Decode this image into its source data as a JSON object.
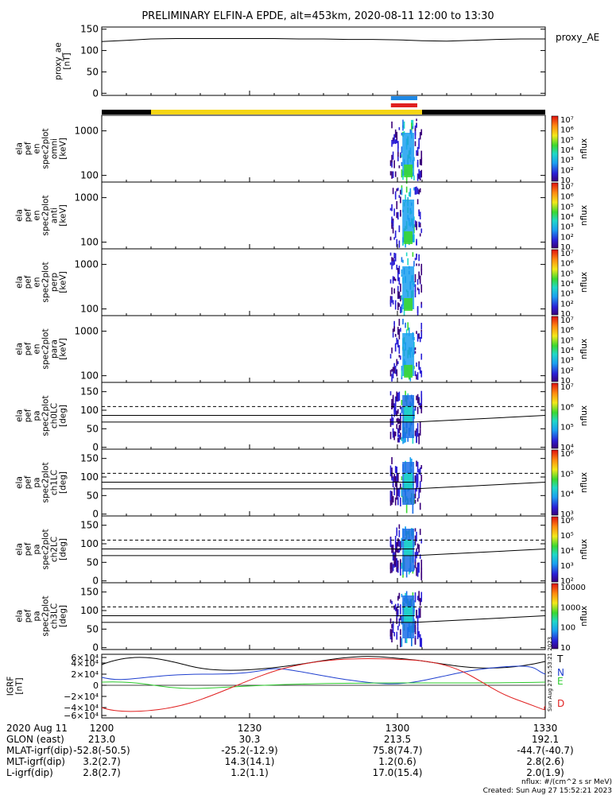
{
  "chart_data": {
    "type": "heatmap",
    "title": "PRELIMINARY ELFIN-A EPDE, alt=453km, 2020-08-11 12:00 to 13:30",
    "panels": [
      {
        "id": "proxy_ae",
        "ylabel_lines": [
          "proxy_ae",
          "[nT]"
        ],
        "ylim": [
          -5,
          155
        ],
        "yticks": [
          {
            "v": 0,
            "t": "0"
          },
          {
            "v": 50,
            "t": "50"
          },
          {
            "v": 100,
            "t": "100"
          },
          {
            "v": 150,
            "t": "150"
          }
        ],
        "legend_right": "proxy_AE",
        "line_times": [
          0,
          5,
          10,
          15,
          20,
          25,
          30,
          35,
          40,
          45,
          50,
          55,
          60,
          65,
          70,
          75,
          80,
          85,
          90
        ],
        "line_values": [
          121,
          124,
          127,
          128,
          128,
          128,
          128,
          128,
          127,
          127,
          126,
          126,
          125,
          123,
          122,
          124,
          126,
          127,
          127
        ]
      },
      {
        "id": "en_omni",
        "type": "energy",
        "ylabel_lines": [
          "ela",
          "pef",
          "en",
          "spec2plot",
          "omni",
          "[keV]"
        ],
        "yticks": [
          {
            "v": 1000,
            "t": "1000"
          },
          {
            "v": 100,
            "t": "100"
          }
        ],
        "colorbar": {
          "unit": "nflux",
          "ticks": [
            "10",
            "10²",
            "10³",
            "10⁴",
            "10⁵",
            "10⁶",
            "10⁷"
          ]
        }
      },
      {
        "id": "en_anti",
        "type": "energy",
        "ylabel_lines": [
          "ela",
          "pef",
          "en",
          "spec2plot",
          "anti",
          "[keV]"
        ],
        "yticks": [
          {
            "v": 1000,
            "t": "1000"
          },
          {
            "v": 100,
            "t": "100"
          }
        ],
        "colorbar": {
          "unit": "nflux",
          "ticks": [
            "10",
            "10²",
            "10³",
            "10⁴",
            "10⁵",
            "10⁶",
            "10⁷"
          ]
        }
      },
      {
        "id": "en_perp",
        "type": "energy",
        "ylabel_lines": [
          "ela",
          "pef",
          "en",
          "spec2plot",
          "perp",
          "[keV]"
        ],
        "yticks": [
          {
            "v": 1000,
            "t": "1000"
          },
          {
            "v": 100,
            "t": "100"
          }
        ],
        "colorbar": {
          "unit": "nflux",
          "ticks": [
            "10",
            "10²",
            "10³",
            "10⁴",
            "10⁵",
            "10⁶",
            "10⁷"
          ]
        }
      },
      {
        "id": "en_para",
        "type": "energy",
        "ylabel_lines": [
          "ela",
          "pef",
          "en",
          "spec2plot",
          "para",
          "[keV]"
        ],
        "yticks": [
          {
            "v": 1000,
            "t": "1000"
          },
          {
            "v": 100,
            "t": "100"
          }
        ],
        "colorbar": {
          "unit": "nflux",
          "ticks": [
            "10",
            "10²",
            "10³",
            "10⁴",
            "10⁵",
            "10⁶",
            "10⁷"
          ]
        }
      },
      {
        "id": "pa_ch0",
        "type": "pitch",
        "ylabel_lines": [
          "ela",
          "pef",
          "pa",
          "spec2plot",
          "ch0LC",
          "[deg]"
        ],
        "yticks": [
          {
            "v": 0,
            "t": "0"
          },
          {
            "v": 50,
            "t": "50"
          },
          {
            "v": 100,
            "t": "100"
          },
          {
            "v": 150,
            "t": "150"
          }
        ],
        "colorbar": {
          "unit": "nflux",
          "ticks": [
            "10⁴",
            "10⁵",
            "10⁶",
            "10⁷"
          ]
        }
      },
      {
        "id": "pa_ch1",
        "type": "pitch",
        "ylabel_lines": [
          "ela",
          "pef",
          "pa",
          "spec2plot",
          "ch1LC",
          "[deg]"
        ],
        "yticks": [
          {
            "v": 0,
            "t": "0"
          },
          {
            "v": 50,
            "t": "50"
          },
          {
            "v": 100,
            "t": "100"
          },
          {
            "v": 150,
            "t": "150"
          }
        ],
        "colorbar": {
          "unit": "nflux",
          "ticks": [
            "10³",
            "10⁴",
            "10⁵",
            "10⁶"
          ]
        }
      },
      {
        "id": "pa_ch2",
        "type": "pitch",
        "ylabel_lines": [
          "ela",
          "pef",
          "pa",
          "spec2plot",
          "ch2LC",
          "[deg]"
        ],
        "yticks": [
          {
            "v": 0,
            "t": "0"
          },
          {
            "v": 50,
            "t": "50"
          },
          {
            "v": 100,
            "t": "100"
          },
          {
            "v": 150,
            "t": "150"
          }
        ],
        "colorbar": {
          "unit": "nflux",
          "ticks": [
            "10²",
            "10³",
            "10⁴",
            "10⁵",
            "10⁶"
          ]
        }
      },
      {
        "id": "pa_ch3",
        "type": "pitch",
        "ylabel_lines": [
          "ela",
          "pef",
          "pa",
          "spec2plot",
          "ch3LC",
          "[deg]"
        ],
        "yticks": [
          {
            "v": 0,
            "t": "0"
          },
          {
            "v": 50,
            "t": "50"
          },
          {
            "v": 100,
            "t": "100"
          },
          {
            "v": 150,
            "t": "150"
          }
        ],
        "colorbar": {
          "unit": "nflux",
          "ticks": [
            "10",
            "100",
            "1000",
            "10000"
          ]
        }
      },
      {
        "id": "igrf",
        "ylabel_lines": [
          "IGRF",
          "[nT]"
        ],
        "yticks": [
          "6×10⁴",
          "4×10⁴",
          "2×10⁴",
          "0",
          "−2×10⁴",
          "−4×10⁴",
          "−6×10⁴"
        ],
        "components": [
          {
            "name": "T",
            "color": "#000000"
          },
          {
            "name": "N",
            "color": "#1f3fcf"
          },
          {
            "name": "E",
            "color": "#2ecc2e"
          },
          {
            "name": "D",
            "color": "#e02020"
          }
        ],
        "stamp": "Sun Aug 27 15:53:21 2023"
      }
    ],
    "science_bar": {
      "segments": [
        {
          "from": 0,
          "to": 10,
          "color": "#000000"
        },
        {
          "from": 10,
          "to": 65,
          "color": "#f5d514"
        },
        {
          "from": 65,
          "to": 90,
          "color": "#000000"
        }
      ],
      "flags": [
        {
          "from": 59,
          "to": 65,
          "color": "#1e88e5"
        },
        {
          "from": 59,
          "to": 65,
          "color": "#e02020"
        }
      ]
    },
    "x_axis": {
      "rows": [
        {
          "label": "2020 Aug 11",
          "values": [
            "1200",
            "1230",
            "1300",
            "1330"
          ]
        },
        {
          "label": "GLON (east)",
          "values": [
            "213.0",
            "30.3",
            "213.5",
            "192.1"
          ]
        },
        {
          "label": "MLAT-igrf(dip)",
          "values": [
            "-52.8(-50.5)",
            "-25.2(-12.9)",
            "75.8(74.7)",
            "-44.7(-40.7)"
          ]
        },
        {
          "label": "MLT-igrf(dip)",
          "values": [
            "3.2(2.7)",
            "14.3(14.1)",
            "1.2(0.6)",
            "2.8(2.6)"
          ]
        },
        {
          "label": "L-igrf(dip)",
          "values": [
            "2.8(2.7)",
            "1.2(1.1)",
            "17.0(15.4)",
            "2.0(1.9)"
          ]
        }
      ]
    },
    "footer": {
      "units": "nflux: #/(cm^2 s sr MeV)",
      "created": "Created: Sun Aug 27 15:52:21 2023"
    }
  }
}
